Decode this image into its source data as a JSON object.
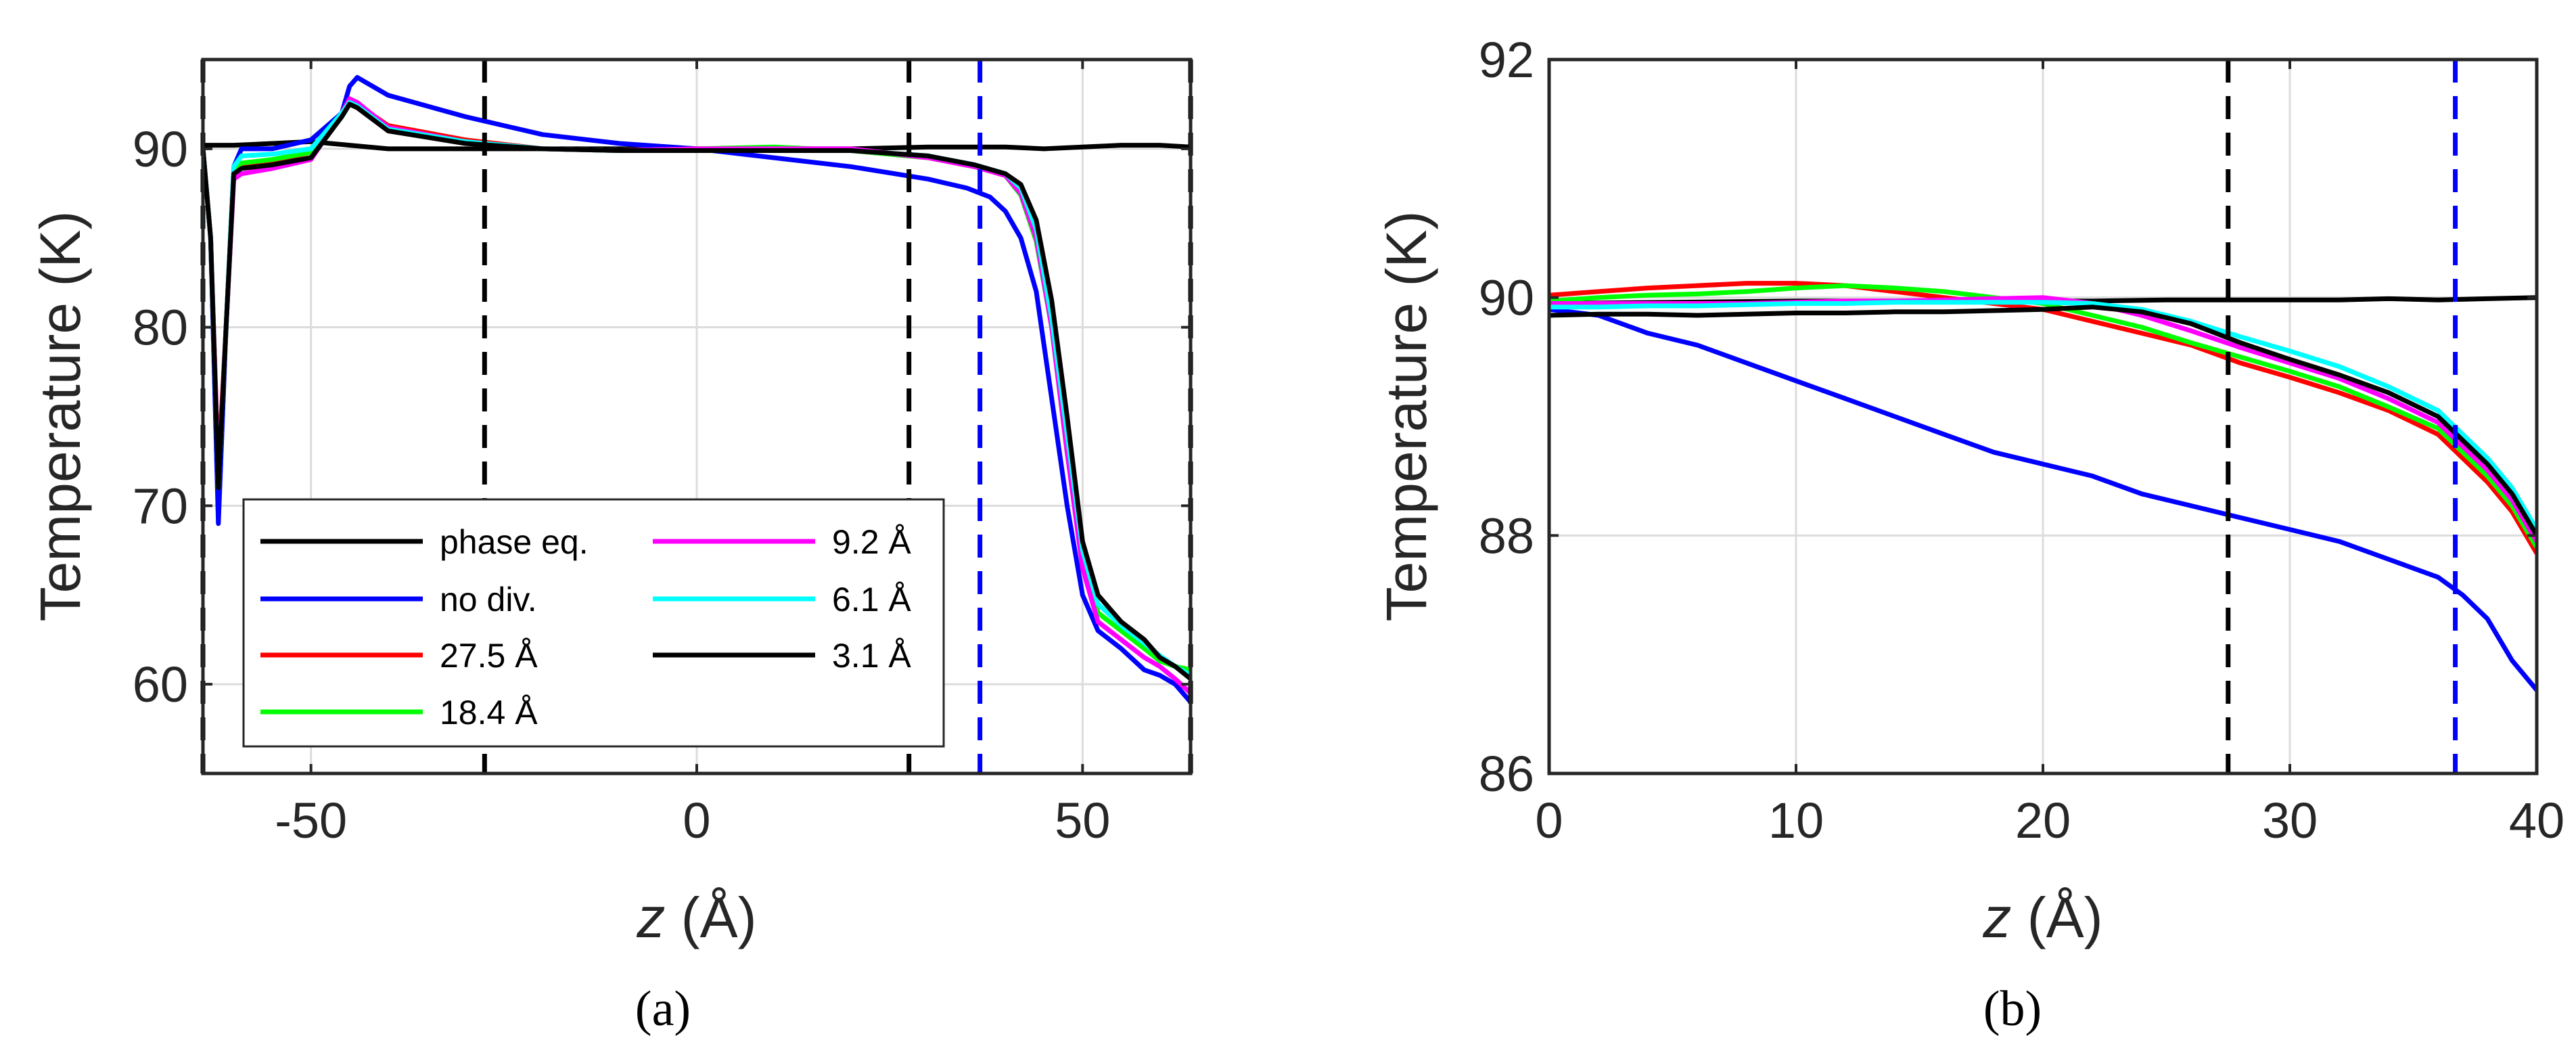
{
  "chart_data": [
    {
      "type": "line",
      "panel_label": "(a)",
      "xlabel_var": "z",
      "xlabel_unit": " (Å)",
      "ylabel": "Temperature (K)",
      "xlim": [
        -64,
        64
      ],
      "ylim": [
        55,
        95
      ],
      "xticks": [
        -50,
        0,
        50
      ],
      "yticks": [
        60,
        70,
        80,
        90
      ],
      "grid": true,
      "legend_position": "bottom-left",
      "vlines": [
        {
          "x": -64,
          "color": "#000000"
        },
        {
          "x": -27.5,
          "color": "#000000"
        },
        {
          "x": 27.5,
          "color": "#000000"
        },
        {
          "x": 36.7,
          "color": "#0000ff"
        },
        {
          "x": 64,
          "color": "#000000"
        }
      ],
      "series": [
        {
          "name": "phase eq.",
          "color": "#000000",
          "x": [
            -64,
            -60,
            -55,
            -50,
            -45,
            -40,
            -30,
            -20,
            -10,
            0,
            10,
            20,
            30,
            40,
            45,
            50,
            55,
            60,
            64
          ],
          "y": [
            90.2,
            90.2,
            90.3,
            90.4,
            90.2,
            90.0,
            90.0,
            90.0,
            90.0,
            90.0,
            90.0,
            90.0,
            90.1,
            90.1,
            90.0,
            90.1,
            90.2,
            90.2,
            90.1
          ]
        },
        {
          "name": "no div.",
          "color": "#0000ff",
          "x": [
            -64,
            -63,
            -62,
            -61,
            -60,
            -59,
            -55,
            -50,
            -46,
            -45,
            -44,
            -40,
            -30,
            -20,
            -10,
            0,
            10,
            20,
            30,
            35,
            38,
            40,
            42,
            44,
            46,
            48,
            50,
            52,
            55,
            58,
            60,
            62,
            64
          ],
          "y": [
            90,
            85,
            69,
            80,
            89,
            90,
            90,
            90.5,
            92,
            93.5,
            94,
            93,
            91.8,
            90.8,
            90.3,
            90,
            89.5,
            89,
            88.3,
            87.8,
            87.3,
            86.5,
            85,
            82,
            76,
            70,
            65,
            63,
            62,
            60.8,
            60.5,
            60,
            59
          ]
        },
        {
          "name": "27.5 Å",
          "color": "#ff0000",
          "x": [
            -64,
            -63,
            -62,
            -61,
            -60,
            -59,
            -55,
            -50,
            -46,
            -45,
            -44,
            -40,
            -30,
            -20,
            -10,
            0,
            10,
            20,
            30,
            36,
            40,
            42,
            44,
            46,
            48,
            50,
            52,
            55,
            58,
            60,
            62,
            64
          ],
          "y": [
            90,
            85,
            72,
            80,
            88.5,
            89,
            89.3,
            89.8,
            92,
            92.8,
            92.5,
            91.3,
            90.5,
            90,
            89.9,
            90,
            90,
            89.9,
            89.5,
            89,
            88.5,
            87.5,
            85,
            80,
            73,
            67,
            64,
            63,
            62,
            61.5,
            61,
            60.5
          ]
        },
        {
          "name": "18.4 Å",
          "color": "#00ff00",
          "x": [
            -64,
            -63,
            -62,
            -61,
            -60,
            -59,
            -55,
            -50,
            -46,
            -45,
            -44,
            -40,
            -30,
            -20,
            -10,
            0,
            10,
            20,
            30,
            36,
            40,
            42,
            44,
            46,
            48,
            50,
            52,
            55,
            58,
            60,
            62,
            64
          ],
          "y": [
            90,
            85,
            71,
            80,
            88.8,
            89.2,
            89.4,
            89.8,
            91.8,
            92.6,
            92.4,
            91.1,
            90.4,
            90,
            89.9,
            90,
            90.1,
            89.9,
            89.5,
            89,
            88.5,
            87.4,
            84.8,
            80,
            73,
            67,
            64,
            63,
            62,
            61.3,
            61,
            60.8
          ]
        },
        {
          "name": "9.2 Å",
          "color": "#ff00ff",
          "x": [
            -64,
            -63,
            -62,
            -61,
            -60,
            -59,
            -55,
            -50,
            -46,
            -45,
            -44,
            -40,
            -30,
            -20,
            -10,
            0,
            10,
            20,
            30,
            36,
            40,
            42,
            44,
            46,
            48,
            50,
            52,
            55,
            58,
            60,
            62,
            64
          ],
          "y": [
            90,
            85,
            71.5,
            80,
            88.3,
            88.6,
            88.9,
            89.4,
            92,
            92.8,
            92.6,
            91.2,
            90.4,
            90,
            89.9,
            90,
            90,
            90,
            89.5,
            89,
            88.5,
            87.5,
            85,
            80,
            73,
            66.5,
            63.5,
            62.5,
            61.5,
            61,
            60.3,
            59.5
          ]
        },
        {
          "name": "6.1 Å",
          "color": "#00ffff",
          "x": [
            -64,
            -63,
            -62,
            -61,
            -60,
            -59,
            -55,
            -50,
            -46,
            -45,
            -44,
            -40,
            -30,
            -20,
            -10,
            0,
            10,
            20,
            30,
            36,
            40,
            42,
            44,
            46,
            48,
            50,
            52,
            55,
            58,
            60,
            62,
            64
          ],
          "y": [
            90,
            85,
            71,
            80,
            89,
            89.6,
            89.7,
            90,
            92,
            92.6,
            92.4,
            91.1,
            90.4,
            90,
            89.9,
            89.9,
            89.9,
            89.9,
            89.6,
            89.1,
            88.6,
            87.8,
            85.5,
            80.5,
            74,
            67.5,
            64.5,
            63.3,
            62.3,
            61.6,
            61,
            60.5
          ]
        },
        {
          "name": "3.1 Å",
          "color": "#000000",
          "x": [
            -64,
            -63,
            -62,
            -61,
            -60,
            -59,
            -55,
            -50,
            -46,
            -45,
            -44,
            -40,
            -30,
            -20,
            -10,
            0,
            10,
            20,
            30,
            36,
            40,
            42,
            44,
            46,
            48,
            50,
            52,
            55,
            58,
            60,
            62,
            64
          ],
          "y": [
            90,
            85,
            71,
            80,
            88.6,
            88.9,
            89.1,
            89.5,
            91.8,
            92.5,
            92.3,
            91,
            90.3,
            90,
            89.9,
            89.9,
            89.9,
            89.9,
            89.6,
            89.1,
            88.6,
            88,
            86,
            81.5,
            75,
            68,
            65,
            63.5,
            62.5,
            61.5,
            61,
            60.3
          ]
        }
      ]
    },
    {
      "type": "line",
      "panel_label": "(b)",
      "xlabel_var": "z",
      "xlabel_unit": " (Å)",
      "ylabel": "Temperature (K)",
      "xlim": [
        0,
        40
      ],
      "ylim": [
        86,
        92
      ],
      "xticks": [
        0,
        10,
        20,
        30,
        40
      ],
      "yticks": [
        86,
        88,
        90,
        92
      ],
      "grid": true,
      "vlines": [
        {
          "x": 27.5,
          "color": "#000000"
        },
        {
          "x": 36.7,
          "color": "#0000ff"
        }
      ],
      "series": [
        {
          "name": "phase eq.",
          "color": "#000000",
          "x": [
            0,
            5,
            10,
            15,
            20,
            22,
            25,
            28,
            30,
            32,
            34,
            36,
            38,
            40
          ],
          "y": [
            89.95,
            89.96,
            89.97,
            89.97,
            89.97,
            89.97,
            89.98,
            89.98,
            89.98,
            89.98,
            89.99,
            89.98,
            89.99,
            90.0
          ]
        },
        {
          "name": "no div.",
          "color": "#0000ff",
          "x": [
            0,
            2,
            4,
            6,
            8,
            10,
            12,
            14,
            16,
            18,
            20,
            22,
            24,
            26,
            28,
            30,
            32,
            34,
            36,
            37,
            38,
            39,
            40
          ],
          "y": [
            89.9,
            89.85,
            89.7,
            89.6,
            89.45,
            89.3,
            89.15,
            89.0,
            88.85,
            88.7,
            88.6,
            88.5,
            88.35,
            88.25,
            88.15,
            88.05,
            87.95,
            87.8,
            87.65,
            87.5,
            87.3,
            86.95,
            86.7
          ]
        },
        {
          "name": "27.5 Å",
          "color": "#ff0000",
          "x": [
            0,
            2,
            4,
            6,
            8,
            10,
            12,
            14,
            16,
            18,
            20,
            22,
            24,
            26,
            28,
            30,
            32,
            34,
            36,
            37,
            38,
            39,
            40
          ],
          "y": [
            90.02,
            90.05,
            90.08,
            90.1,
            90.12,
            90.12,
            90.1,
            90.05,
            90.0,
            89.95,
            89.9,
            89.8,
            89.7,
            89.6,
            89.45,
            89.33,
            89.2,
            89.05,
            88.85,
            88.65,
            88.45,
            88.2,
            87.85
          ]
        },
        {
          "name": "18.4 Å",
          "color": "#00ff00",
          "x": [
            0,
            2,
            4,
            6,
            8,
            10,
            12,
            14,
            16,
            18,
            20,
            22,
            24,
            26,
            28,
            30,
            32,
            34,
            36,
            37,
            38,
            39,
            40
          ],
          "y": [
            89.97,
            90.0,
            90.02,
            90.03,
            90.05,
            90.08,
            90.1,
            90.08,
            90.05,
            90.0,
            89.95,
            89.85,
            89.75,
            89.62,
            89.5,
            89.38,
            89.25,
            89.08,
            88.9,
            88.7,
            88.5,
            88.25,
            87.9
          ]
        },
        {
          "name": "9.2 Å",
          "color": "#ff00ff",
          "x": [
            0,
            2,
            4,
            6,
            8,
            10,
            12,
            14,
            16,
            18,
            20,
            22,
            24,
            26,
            28,
            30,
            32,
            34,
            36,
            37,
            38,
            39,
            40
          ],
          "y": [
            89.95,
            89.95,
            89.95,
            89.95,
            89.95,
            89.96,
            89.97,
            89.97,
            89.98,
            89.99,
            90.0,
            89.95,
            89.85,
            89.72,
            89.58,
            89.45,
            89.32,
            89.15,
            88.95,
            88.75,
            88.55,
            88.3,
            87.95
          ]
        },
        {
          "name": "6.1 Å",
          "color": "#00ffff",
          "x": [
            0,
            2,
            4,
            6,
            8,
            10,
            12,
            14,
            16,
            18,
            20,
            22,
            24,
            26,
            28,
            30,
            32,
            34,
            36,
            37,
            38,
            39,
            40
          ],
          "y": [
            89.92,
            89.92,
            89.93,
            89.93,
            89.94,
            89.95,
            89.95,
            89.96,
            89.96,
            89.96,
            89.96,
            89.95,
            89.9,
            89.8,
            89.67,
            89.55,
            89.42,
            89.25,
            89.05,
            88.85,
            88.65,
            88.4,
            88.05
          ]
        },
        {
          "name": "3.1 Å",
          "color": "#000000",
          "x": [
            0,
            2,
            4,
            6,
            8,
            10,
            12,
            14,
            16,
            18,
            20,
            22,
            24,
            26,
            28,
            30,
            32,
            34,
            36,
            37,
            38,
            39,
            40
          ],
          "y": [
            89.85,
            89.86,
            89.86,
            89.85,
            89.86,
            89.87,
            89.87,
            89.88,
            89.88,
            89.89,
            89.9,
            89.92,
            89.88,
            89.78,
            89.62,
            89.48,
            89.35,
            89.2,
            89.0,
            88.8,
            88.6,
            88.35,
            88.0
          ]
        }
      ]
    }
  ]
}
